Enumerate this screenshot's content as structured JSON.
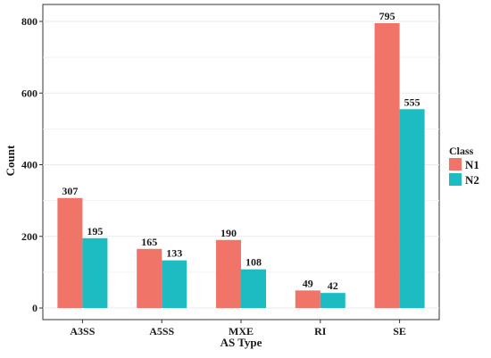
{
  "chart_data": {
    "type": "bar",
    "xlabel": "AS Type",
    "ylabel": "Count",
    "categories": [
      "A3SS",
      "A5SS",
      "MXE",
      "RI",
      "SE"
    ],
    "series": [
      {
        "name": "N1",
        "values": [
          307,
          165,
          190,
          49,
          795
        ],
        "color": "#f07467"
      },
      {
        "name": "N2",
        "values": [
          195,
          133,
          108,
          42,
          555
        ],
        "color": "#1cbcc2"
      }
    ],
    "ylim": [
      0,
      850
    ],
    "yticks": [
      0,
      200,
      400,
      600,
      800
    ],
    "legend": {
      "title": "Class",
      "position": "right"
    },
    "grid": true
  }
}
